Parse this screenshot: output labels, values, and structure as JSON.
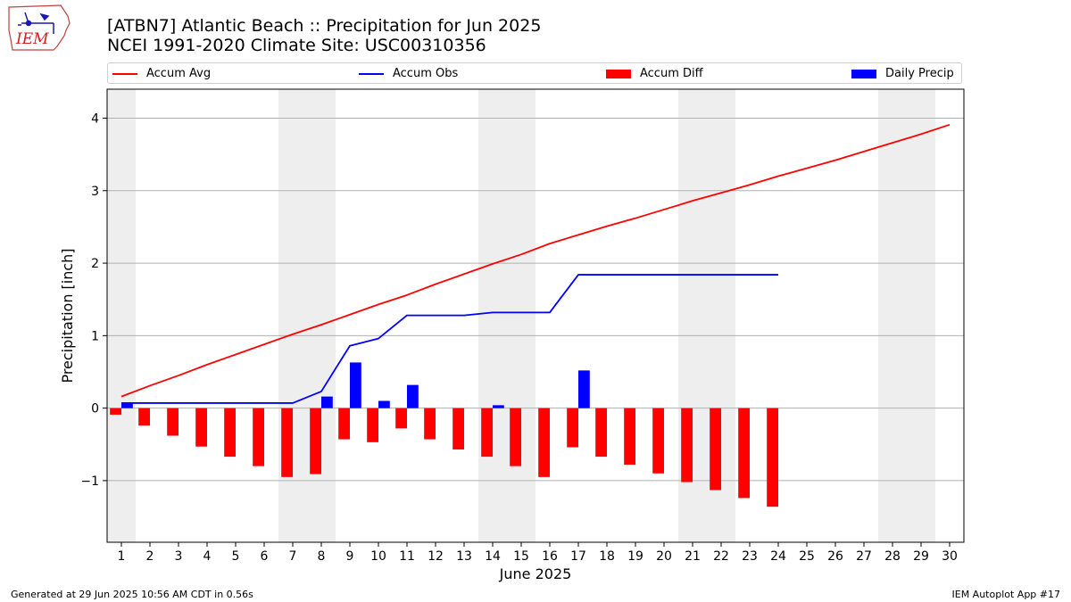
{
  "header": {
    "title_line1": "[ATBN7] Atlantic Beach :: Precipitation for Jun 2025",
    "title_line2": "NCEI 1991-2020 Climate Site: USC00310356",
    "logo_text": "IEM"
  },
  "footer": {
    "generated": "Generated at 29 Jun 2025 10:56 AM CDT in 0.56s",
    "app": "IEM Autoplot App #17"
  },
  "colors": {
    "avg": "#ff0000",
    "obs": "#0000ff",
    "diff": "#ff0000",
    "daily": "#0000ff",
    "weekend_band": "#eeeeee",
    "grid": "#b0b0b0"
  },
  "chart_data": {
    "type": "bar",
    "xlabel": "June 2025",
    "ylabel": "Precipitation [inch]",
    "xlim": [
      0.5,
      30.5
    ],
    "ylim": [
      -1.85,
      4.4
    ],
    "yticks": [
      -1,
      0,
      1,
      2,
      3,
      4
    ],
    "ytick_labels": [
      "−1",
      "0",
      "1",
      "2",
      "3",
      "4"
    ],
    "days": [
      1,
      2,
      3,
      4,
      5,
      6,
      7,
      8,
      9,
      10,
      11,
      12,
      13,
      14,
      15,
      16,
      17,
      18,
      19,
      20,
      21,
      22,
      23,
      24,
      25,
      26,
      27,
      28,
      29,
      30
    ],
    "weekend_ranges": [
      [
        0.5,
        1.5
      ],
      [
        6.5,
        8.5
      ],
      [
        13.5,
        15.5
      ],
      [
        20.5,
        22.5
      ],
      [
        27.5,
        29.5
      ]
    ],
    "grid": "horizontal",
    "legend_position": "top",
    "series": [
      {
        "name": "Accum Avg",
        "kind": "line",
        "x": [
          1,
          2,
          3,
          4,
          5,
          6,
          7,
          8,
          9,
          10,
          11,
          12,
          13,
          14,
          15,
          16,
          17,
          18,
          19,
          20,
          21,
          22,
          23,
          24,
          25,
          26,
          27,
          28,
          29,
          30
        ],
        "values": [
          0.16,
          0.31,
          0.45,
          0.6,
          0.74,
          0.88,
          1.02,
          1.15,
          1.29,
          1.43,
          1.56,
          1.71,
          1.85,
          1.99,
          2.12,
          2.27,
          2.39,
          2.51,
          2.62,
          2.74,
          2.86,
          2.97,
          3.08,
          3.2,
          3.31,
          3.42,
          3.54,
          3.66,
          3.78,
          3.91
        ]
      },
      {
        "name": "Accum Obs",
        "kind": "line",
        "x": [
          1,
          2,
          3,
          4,
          5,
          6,
          7,
          8,
          9,
          10,
          11,
          12,
          13,
          14,
          15,
          16,
          17,
          18,
          19,
          20,
          21,
          22,
          23,
          24
        ],
        "values": [
          0.07,
          0.07,
          0.07,
          0.07,
          0.07,
          0.07,
          0.07,
          0.23,
          0.86,
          0.96,
          1.28,
          1.28,
          1.28,
          1.32,
          1.32,
          1.32,
          1.84,
          1.84,
          1.84,
          1.84,
          1.84,
          1.84,
          1.84,
          1.84
        ]
      },
      {
        "name": "Accum Diff",
        "kind": "bar",
        "offset": -0.2,
        "x": [
          1,
          2,
          3,
          4,
          5,
          6,
          7,
          8,
          9,
          10,
          11,
          12,
          13,
          14,
          15,
          16,
          17,
          18,
          19,
          20,
          21,
          22,
          23,
          24
        ],
        "values": [
          -0.09,
          -0.24,
          -0.38,
          -0.53,
          -0.67,
          -0.8,
          -0.95,
          -0.91,
          -0.43,
          -0.47,
          -0.28,
          -0.43,
          -0.57,
          -0.67,
          -0.8,
          -0.95,
          -0.54,
          -0.67,
          -0.78,
          -0.9,
          -1.02,
          -1.13,
          -1.24,
          -1.36
        ]
      },
      {
        "name": "Daily Precip",
        "kind": "bar",
        "offset": 0.2,
        "x": [
          1,
          8,
          9,
          10,
          11,
          14,
          17
        ],
        "values": [
          0.07,
          0.16,
          0.63,
          0.1,
          0.32,
          0.04,
          0.52
        ]
      }
    ]
  }
}
